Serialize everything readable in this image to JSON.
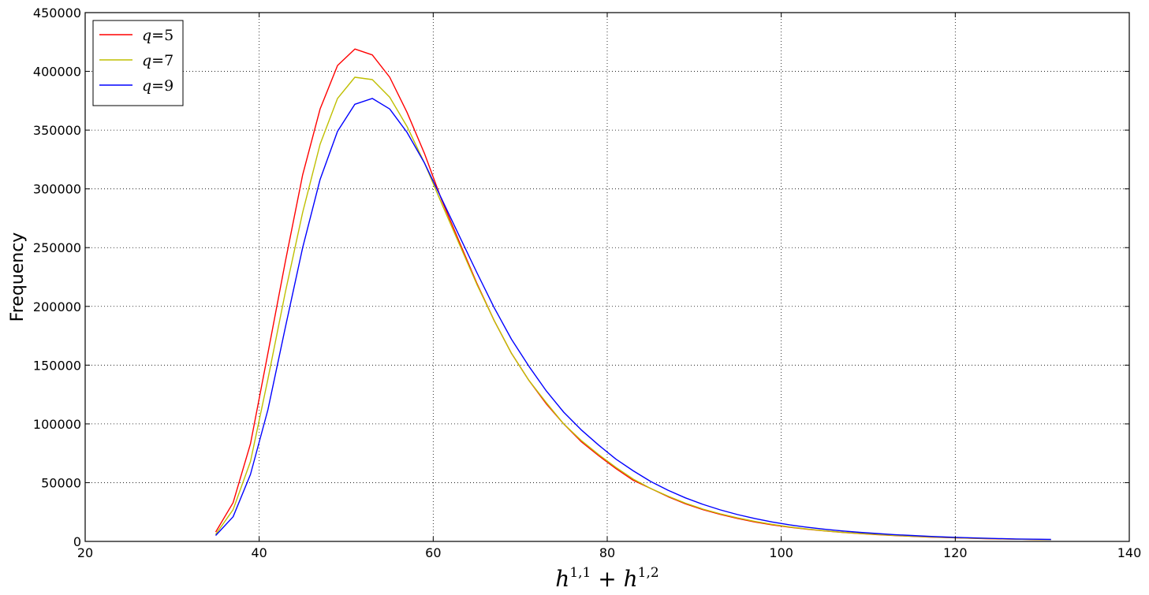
{
  "chart_data": {
    "type": "line",
    "xlabel": {
      "base1": "h",
      "sup1": "1,1",
      "op": " + ",
      "base2": "h",
      "sup2": "1,2"
    },
    "ylabel": "Frequency",
    "xlim": [
      20,
      140
    ],
    "ylim": [
      0,
      450000
    ],
    "xticks": [
      "20",
      "40",
      "60",
      "80",
      "100",
      "120",
      "140"
    ],
    "yticks": [
      "0",
      "50000",
      "100000",
      "150000",
      "200000",
      "250000",
      "300000",
      "350000",
      "400000",
      "450000"
    ],
    "grid": true,
    "legend_position": "top-left",
    "x": [
      35,
      37,
      39,
      41,
      43,
      45,
      47,
      49,
      51,
      53,
      55,
      57,
      59,
      61,
      63,
      65,
      67,
      69,
      71,
      73,
      75,
      77,
      79,
      81,
      83,
      85,
      87,
      89,
      91,
      93,
      95,
      97,
      99,
      101,
      103,
      105,
      107,
      109,
      111,
      113,
      115,
      117,
      119,
      121,
      123,
      125,
      127,
      129,
      131
    ],
    "series": [
      {
        "name": "q=5",
        "var": "q",
        "eq": "=5",
        "color": "#ff0000",
        "values": [
          8000,
          33000,
          83000,
          160000,
          238000,
          312000,
          368000,
          405000,
          419000,
          414000,
          395000,
          365000,
          330000,
          290000,
          255000,
          220000,
          188000,
          160000,
          137000,
          117000,
          100000,
          85000,
          73000,
          62000,
          52000,
          45000,
          38000,
          32000,
          27000,
          23000,
          19500,
          16500,
          14000,
          12000,
          10300,
          8900,
          7700,
          6700,
          5800,
          5000,
          4300,
          3700,
          3200,
          2800,
          2400,
          2100,
          1900,
          1700,
          1500
        ]
      },
      {
        "name": "q=7",
        "var": "q",
        "eq": "=7",
        "color": "#bfbf00",
        "values": [
          6000,
          27000,
          68000,
          138000,
          212000,
          280000,
          338000,
          377000,
          395000,
          393000,
          378000,
          353000,
          322000,
          287000,
          253000,
          219000,
          188000,
          160000,
          137000,
          118000,
          100000,
          86000,
          74000,
          63000,
          53000,
          45000,
          38500,
          32500,
          27500,
          23500,
          20000,
          17000,
          14500,
          12300,
          10500,
          9000,
          7800,
          6800,
          5900,
          5100,
          4400,
          3800,
          3300,
          2900,
          2500,
          2200,
          1900,
          1700,
          1500
        ]
      },
      {
        "name": "q=9",
        "var": "q",
        "eq": "=9",
        "color": "#0000ff",
        "values": [
          5000,
          21000,
          57000,
          112000,
          182000,
          250000,
          308000,
          349000,
          372000,
          377000,
          368000,
          348000,
          322000,
          291000,
          260000,
          229000,
          199000,
          172000,
          149000,
          128000,
          110000,
          95000,
          82000,
          70000,
          60000,
          51000,
          43500,
          37000,
          31500,
          26800,
          22800,
          19400,
          16500,
          14000,
          12000,
          10300,
          8900,
          7700,
          6700,
          5800,
          5000,
          4300,
          3700,
          3200,
          2800,
          2400,
          2100,
          1900,
          1700
        ]
      }
    ]
  }
}
